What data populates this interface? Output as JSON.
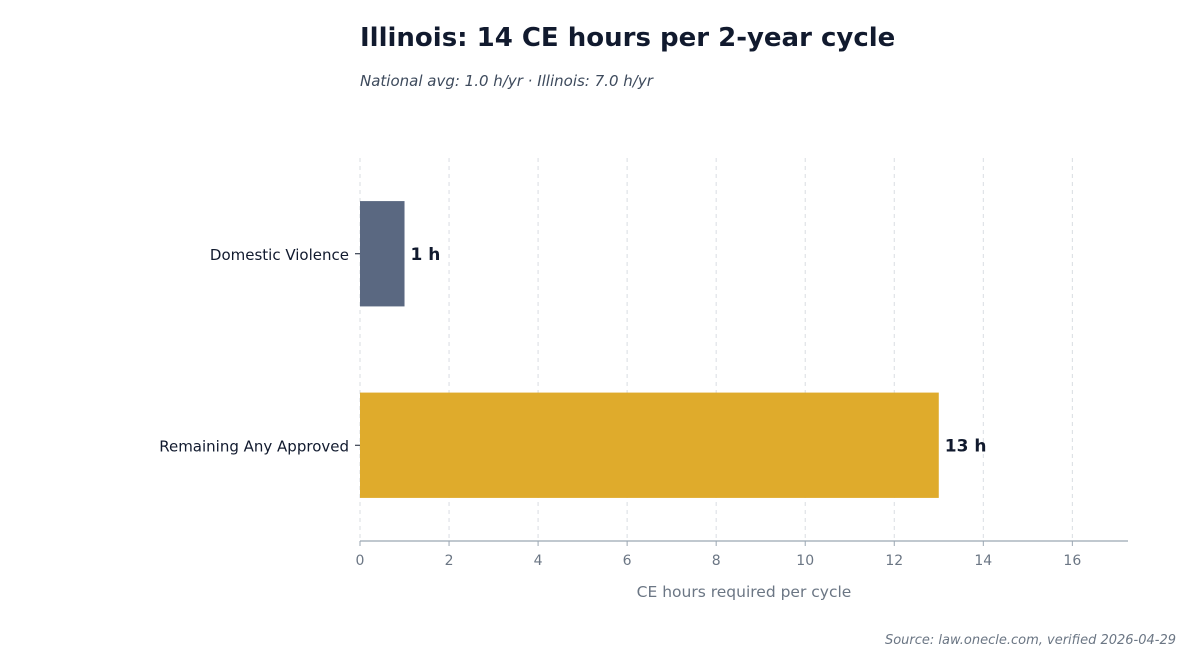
{
  "chart_data": {
    "type": "bar",
    "orientation": "horizontal",
    "title": "Illinois: 14 CE hours per 2-year cycle",
    "subtitle": "National avg: 1.0 h/yr · Illinois: 7.0 h/yr",
    "categories": [
      "Domestic Violence",
      "Remaining Any Approved"
    ],
    "values": [
      1,
      13
    ],
    "data_labels": [
      "1 h",
      "13 h"
    ],
    "colors": [
      "#5a6881",
      "#dfab2c"
    ],
    "xlabel": "CE hours required per cycle",
    "ylabel": "",
    "xlim": [
      0,
      17.25
    ],
    "xticks": [
      0,
      2,
      4,
      6,
      8,
      10,
      12,
      14,
      16
    ],
    "grid": "vertical dashed",
    "legend": "none"
  },
  "source": "Source: law.onecle.com, verified 2026-04-29"
}
